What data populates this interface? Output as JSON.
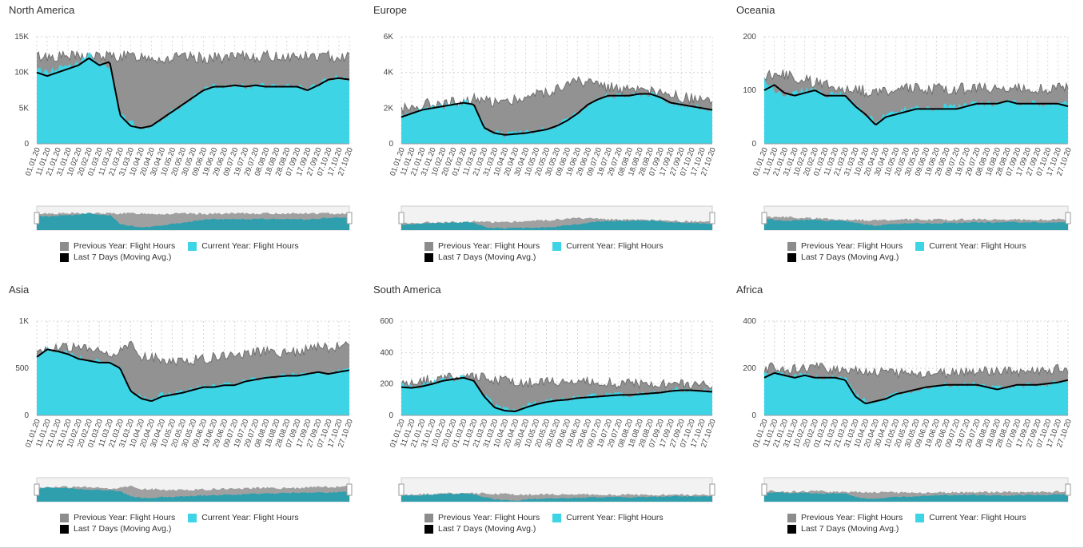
{
  "colors": {
    "previous": "#8c8c8c",
    "current": "#3dd4e6",
    "moving_avg": "#000000",
    "grid": "#d6d6d6",
    "panel_border": "#cfcfcf"
  },
  "legend": {
    "previous": "Previous Year: Flight Hours",
    "current": "Current Year: Flight Hours",
    "moving_avg": "Last 7 Days (Moving Avg.)"
  },
  "x_tick_labels": [
    "01.01.20",
    "11.01.20",
    "21.01.20",
    "31.01.20",
    "10.02.20",
    "20.02.20",
    "01.03.20",
    "11.03.20",
    "21.03.20",
    "31.03.20",
    "10.04.20",
    "20.04.20",
    "30.04.20",
    "10.05.20",
    "20.05.20",
    "30.05.20",
    "09.06.20",
    "19.06.20",
    "29.06.20",
    "09.07.20",
    "19.07.20",
    "29.07.20",
    "08.08.20",
    "18.08.20",
    "28.08.20",
    "07.09.20",
    "17.09.20",
    "27.09.20",
    "07.10.20",
    "17.10.20",
    "27.10.20"
  ],
  "panels": [
    {
      "title": "North America",
      "chart_data": {
        "type": "area",
        "ylim": [
          0,
          15000
        ],
        "y_ticks": [
          0,
          5000,
          10000,
          15000
        ],
        "y_tick_labels": [
          "0",
          "5K",
          "10K",
          "15K"
        ],
        "series": [
          {
            "name": "Previous Year: Flight Hours",
            "key": "previous",
            "values": [
              12000,
              12000,
              12000,
              12000,
              12000,
              12000,
              12000,
              12000,
              12000,
              12000,
              12000,
              12000,
              11500,
              11800,
              11800,
              11800,
              11800,
              11800,
              11800,
              11800,
              12000,
              12000,
              12000,
              12000,
              12000,
              12000,
              12000,
              12000,
              12000,
              12000,
              12000
            ]
          },
          {
            "name": "Current Year: Flight Hours",
            "key": "current",
            "values": [
              10500,
              10000,
              10500,
              11000,
              11500,
              12500,
              11000,
              11000,
              4500,
              3000,
              2200,
              2500,
              3500,
              4500,
              5500,
              6500,
              7500,
              8000,
              8000,
              8200,
              8000,
              8200,
              8000,
              8000,
              8000,
              8000,
              7500,
              8200,
              9000,
              9200,
              9000
            ]
          },
          {
            "name": "Last 7 Days (Moving Avg.)",
            "key": "moving_avg",
            "values": [
              10000,
              9500,
              10000,
              10500,
              11000,
              12000,
              11000,
              11500,
              4000,
              2500,
              2200,
              2500,
              3500,
              4500,
              5500,
              6500,
              7500,
              8000,
              8000,
              8200,
              8000,
              8200,
              8000,
              8000,
              8000,
              8000,
              7500,
              8200,
              9000,
              9200,
              9000
            ]
          }
        ]
      }
    },
    {
      "title": "Europe",
      "chart_data": {
        "type": "area",
        "ylim": [
          0,
          6000
        ],
        "y_ticks": [
          0,
          2000,
          4000,
          6000
        ],
        "y_tick_labels": [
          "0",
          "2K",
          "4K",
          "6K"
        ],
        "series": [
          {
            "name": "Previous Year: Flight Hours",
            "key": "previous",
            "values": [
              1900,
              1900,
              2100,
              2200,
              2300,
              2200,
              2300,
              2400,
              2300,
              2300,
              2300,
              2400,
              2500,
              2700,
              2800,
              3000,
              3200,
              3400,
              3300,
              3200,
              3100,
              3000,
              2900,
              2800,
              2800,
              2700,
              2600,
              2500,
              2400,
              2300,
              2200
            ]
          },
          {
            "name": "Current Year: Flight Hours",
            "key": "current",
            "values": [
              1600,
              1700,
              1900,
              2000,
              2100,
              2200,
              2300,
              2300,
              900,
              600,
              500,
              550,
              600,
              700,
              800,
              1000,
              1300,
              1700,
              2200,
              2500,
              2700,
              2700,
              2700,
              2800,
              2800,
              2600,
              2300,
              2200,
              2100,
              2000,
              1900
            ]
          },
          {
            "name": "Last 7 Days (Moving Avg.)",
            "key": "moving_avg",
            "values": [
              1500,
              1700,
              1900,
              2000,
              2100,
              2200,
              2300,
              2200,
              900,
              600,
              500,
              550,
              600,
              700,
              800,
              1000,
              1300,
              1700,
              2200,
              2500,
              2700,
              2700,
              2700,
              2800,
              2800,
              2600,
              2300,
              2200,
              2100,
              2000,
              1900
            ]
          }
        ]
      }
    },
    {
      "title": "Oceania",
      "chart_data": {
        "type": "area",
        "ylim": [
          0,
          200
        ],
        "y_ticks": [
          0,
          100,
          200
        ],
        "y_tick_labels": [
          "0",
          "100",
          "200"
        ],
        "series": [
          {
            "name": "Previous Year: Flight Hours",
            "key": "previous",
            "values": [
              120,
              130,
              125,
              120,
              115,
              110,
              110,
              105,
              100,
              100,
              95,
              95,
              95,
              100,
              100,
              100,
              100,
              100,
              100,
              100,
              100,
              100,
              100,
              100,
              100,
              100,
              100,
              100,
              100,
              100,
              100
            ]
          },
          {
            "name": "Current Year: Flight Hours",
            "key": "current",
            "values": [
              120,
              100,
              90,
              95,
              100,
              100,
              90,
              95,
              90,
              70,
              55,
              40,
              55,
              60,
              65,
              65,
              65,
              65,
              70,
              70,
              70,
              75,
              75,
              75,
              80,
              75,
              75,
              75,
              75,
              75,
              75
            ]
          },
          {
            "name": "Last 7 Days (Moving Avg.)",
            "key": "moving_avg",
            "values": [
              100,
              110,
              95,
              90,
              95,
              100,
              90,
              90,
              90,
              70,
              55,
              35,
              50,
              55,
              60,
              65,
              65,
              65,
              65,
              65,
              70,
              75,
              75,
              75,
              80,
              75,
              75,
              75,
              75,
              75,
              70
            ]
          }
        ]
      }
    },
    {
      "title": "Asia",
      "chart_data": {
        "type": "area",
        "ylim": [
          0,
          1000
        ],
        "y_ticks": [
          0,
          500,
          1000
        ],
        "y_tick_labels": [
          "0",
          "500",
          "1K"
        ],
        "series": [
          {
            "name": "Previous Year: Flight Hours",
            "key": "previous",
            "values": [
              680,
              700,
              700,
              700,
              700,
              680,
              650,
              650,
              650,
              750,
              600,
              600,
              580,
              550,
              560,
              570,
              580,
              600,
              620,
              640,
              640,
              650,
              660,
              650,
              660,
              660,
              680,
              700,
              700,
              720,
              750
            ]
          },
          {
            "name": "Current Year: Flight Hours",
            "key": "current",
            "values": [
              620,
              700,
              680,
              650,
              620,
              580,
              580,
              560,
              500,
              260,
              190,
              160,
              220,
              230,
              250,
              280,
              300,
              310,
              320,
              330,
              360,
              380,
              400,
              410,
              420,
              430,
              440,
              450,
              450,
              460,
              480
            ]
          },
          {
            "name": "Last 7 Days (Moving Avg.)",
            "key": "moving_avg",
            "values": [
              620,
              700,
              680,
              650,
              600,
              580,
              560,
              560,
              500,
              260,
              180,
              150,
              200,
              220,
              240,
              270,
              300,
              300,
              320,
              320,
              360,
              380,
              400,
              410,
              420,
              420,
              440,
              460,
              440,
              460,
              480
            ]
          }
        ]
      }
    },
    {
      "title": "South America",
      "chart_data": {
        "type": "area",
        "ylim": [
          0,
          600
        ],
        "y_ticks": [
          0,
          200,
          400,
          600
        ],
        "y_tick_labels": [
          "0",
          "200",
          "400",
          "600"
        ],
        "series": [
          {
            "name": "Previous Year: Flight Hours",
            "key": "previous",
            "values": [
              210,
              200,
              210,
              220,
              230,
              240,
              240,
              230,
              230,
              220,
              210,
              210,
              200,
              200,
              200,
              200,
              200,
              210,
              200,
              200,
              200,
              190,
              190,
              190,
              190,
              190,
              190,
              190,
              190,
              190,
              190
            ]
          },
          {
            "name": "Current Year: Flight Hours",
            "key": "current",
            "values": [
              190,
              180,
              190,
              210,
              220,
              230,
              240,
              220,
              130,
              60,
              40,
              30,
              60,
              80,
              90,
              100,
              100,
              110,
              120,
              120,
              130,
              130,
              130,
              140,
              140,
              150,
              160,
              160,
              160,
              160,
              150
            ]
          },
          {
            "name": "Last 7 Days (Moving Avg.)",
            "key": "moving_avg",
            "values": [
              180,
              175,
              185,
              200,
              220,
              230,
              240,
              220,
              120,
              50,
              30,
              25,
              50,
              70,
              85,
              95,
              100,
              110,
              115,
              120,
              125,
              130,
              130,
              135,
              140,
              145,
              155,
              160,
              160,
              155,
              150
            ]
          }
        ]
      }
    },
    {
      "title": "Africa",
      "chart_data": {
        "type": "area",
        "ylim": [
          0,
          400
        ],
        "y_ticks": [
          0,
          200,
          400
        ],
        "y_tick_labels": [
          "0",
          "200",
          "400"
        ],
        "series": [
          {
            "name": "Previous Year: Flight Hours",
            "key": "previous",
            "values": [
              190,
              200,
              190,
              190,
              190,
              200,
              190,
              190,
              190,
              190,
              180,
              180,
              180,
              170,
              170,
              170,
              170,
              170,
              170,
              180,
              180,
              180,
              180,
              180,
              180,
              180,
              180,
              180,
              190,
              190,
              190
            ]
          },
          {
            "name": "Current Year: Flight Hours",
            "key": "current",
            "values": [
              170,
              180,
              170,
              170,
              170,
              160,
              160,
              160,
              160,
              90,
              60,
              60,
              70,
              90,
              100,
              110,
              120,
              130,
              130,
              130,
              130,
              130,
              120,
              120,
              120,
              120,
              130,
              130,
              130,
              140,
              150
            ]
          },
          {
            "name": "Last 7 Days (Moving Avg.)",
            "key": "moving_avg",
            "values": [
              160,
              180,
              170,
              160,
              170,
              160,
              160,
              160,
              150,
              80,
              50,
              60,
              70,
              90,
              100,
              110,
              120,
              125,
              130,
              130,
              130,
              130,
              120,
              110,
              120,
              130,
              130,
              130,
              135,
              140,
              150
            ]
          }
        ]
      }
    }
  ]
}
